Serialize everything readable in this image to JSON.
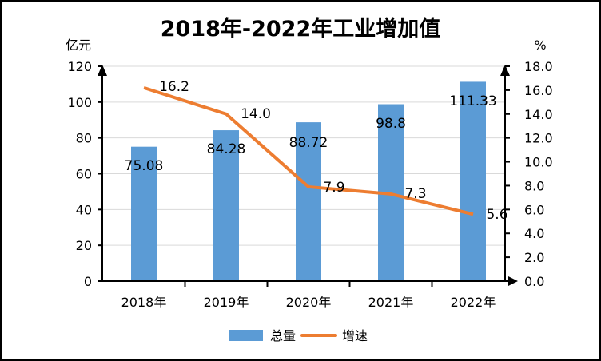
{
  "chart_data": {
    "type": "bar",
    "title": "2018年-2022年工业增加值",
    "categories": [
      "2018年",
      "2019年",
      "2020年",
      "2021年",
      "2022年"
    ],
    "ylabel_left": "亿元",
    "ylabel_right": "%",
    "ylim_left": [
      0,
      120
    ],
    "ylim_right": [
      0,
      18
    ],
    "yticks_left": [
      "0",
      "20",
      "40",
      "60",
      "80",
      "100",
      "120"
    ],
    "yticks_right": [
      "0.0",
      "2.0",
      "4.0",
      "6.0",
      "8.0",
      "10.0",
      "12.0",
      "14.0",
      "16.0",
      "18.0"
    ],
    "grid": true,
    "legend_position": "bottom",
    "series": [
      {
        "name": "总量",
        "type": "bar",
        "axis": "left",
        "color": "#5b9bd5",
        "values": [
          75.08,
          84.28,
          88.72,
          98.8,
          111.33
        ],
        "labels": [
          "75.08",
          "84.28",
          "88.72",
          "98.8",
          "111.33"
        ]
      },
      {
        "name": "增速",
        "type": "line",
        "axis": "right",
        "color": "#ed7d31",
        "values": [
          16.2,
          14.0,
          7.9,
          7.3,
          5.6
        ],
        "labels": [
          "16.2",
          "14.0",
          "7.9",
          "7.3",
          "5.6"
        ]
      }
    ]
  }
}
